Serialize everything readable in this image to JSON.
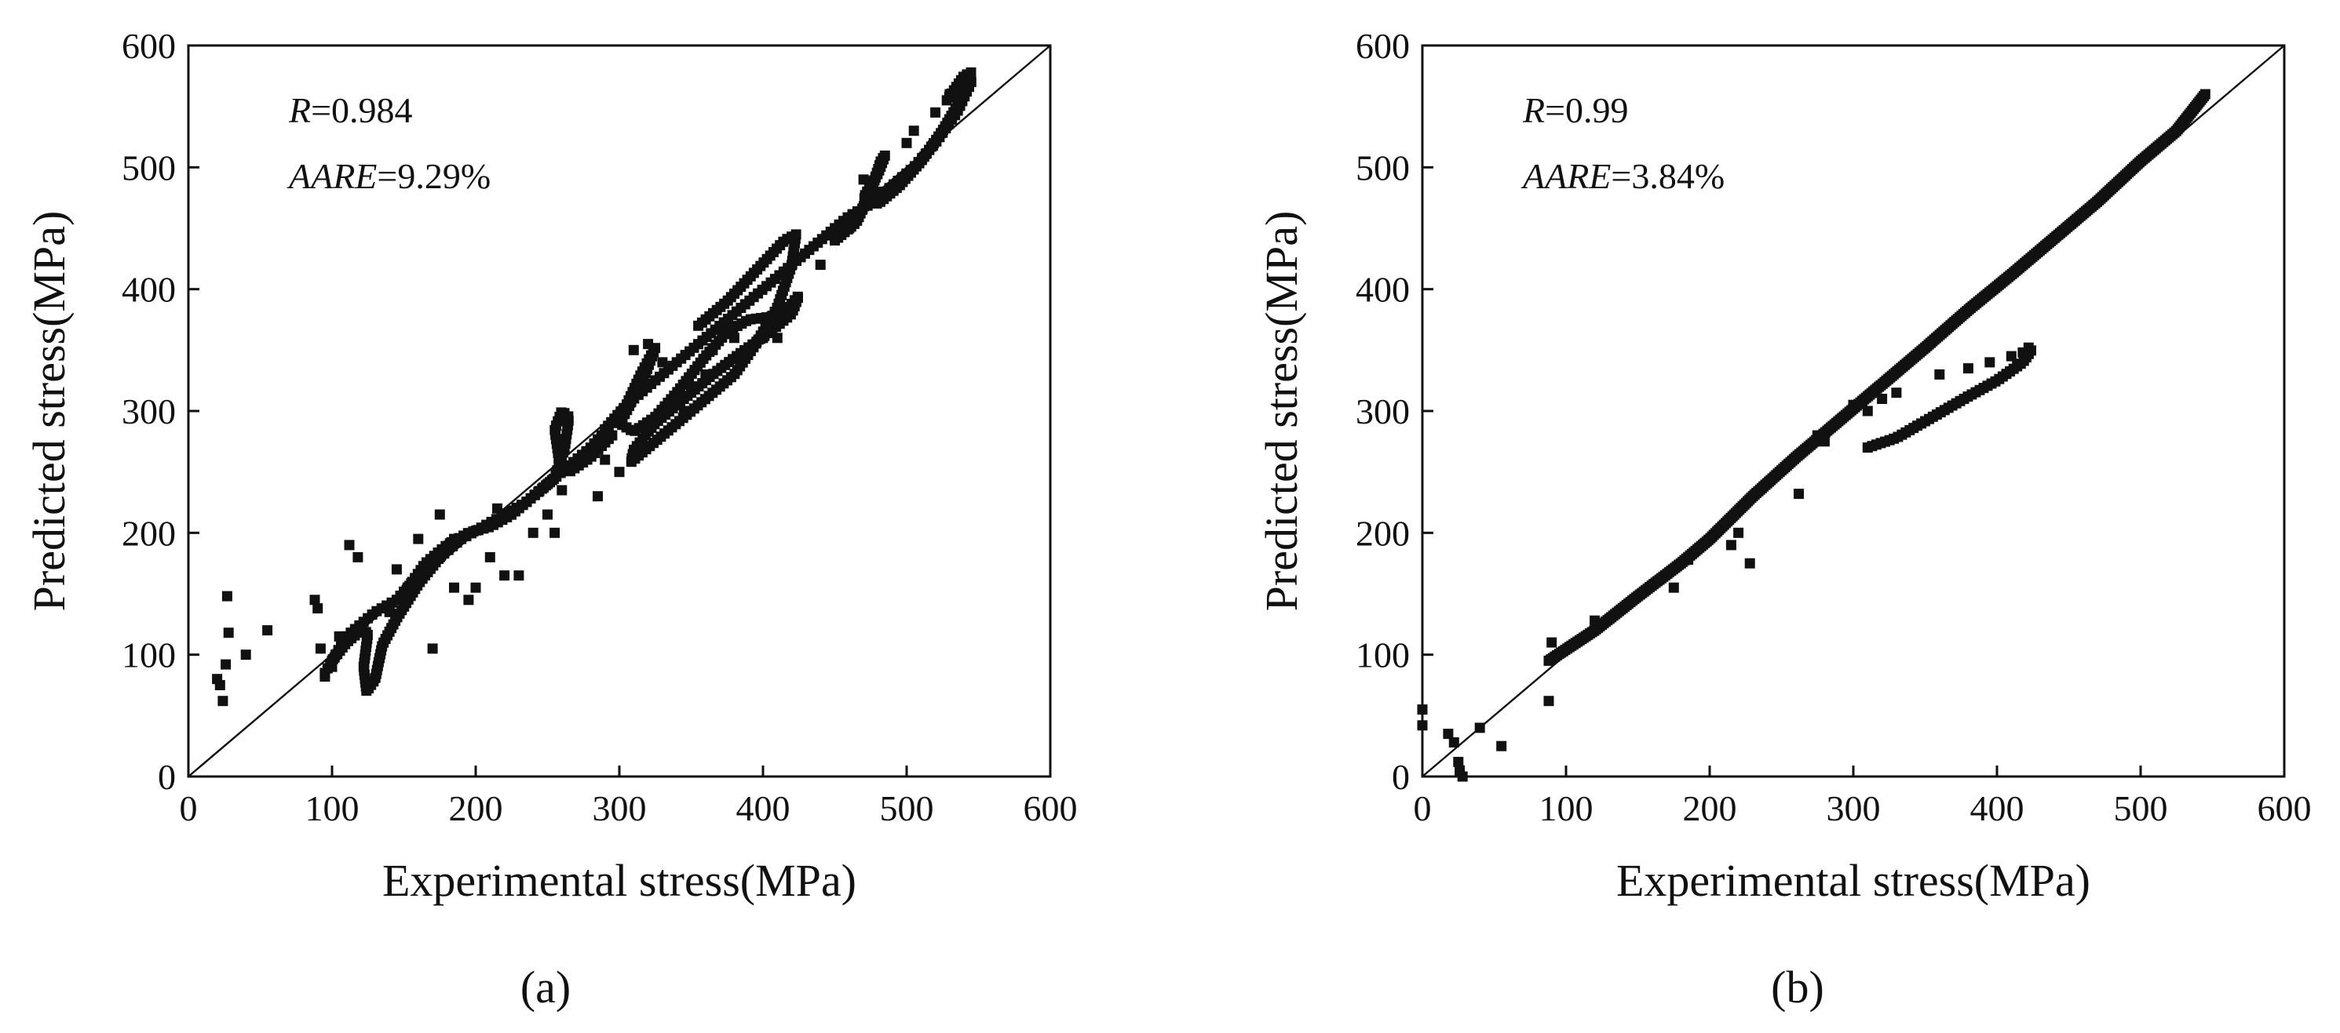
{
  "chart_data": [
    {
      "type": "scatter",
      "panel_label": "(a)",
      "xlabel": "Experimental stress(MPa)",
      "ylabel": "Predicted stress(MPa)",
      "xlim": [
        0,
        600
      ],
      "ylim": [
        0,
        600
      ],
      "xticks": [
        "0",
        "100",
        "200",
        "300",
        "400",
        "500",
        "600"
      ],
      "yticks": [
        "0",
        "100",
        "200",
        "300",
        "400",
        "500",
        "600"
      ],
      "grid": false,
      "reference_line": [
        [
          0,
          0
        ],
        [
          600,
          600
        ]
      ],
      "stats": {
        "r_label": "R",
        "r_value": "=0.984",
        "aare_label": "AARE",
        "aare_value": "=9.29%"
      },
      "marker_color": "#111111",
      "outliers": [
        [
          20,
          80
        ],
        [
          22,
          75
        ],
        [
          24,
          62
        ],
        [
          26,
          92
        ],
        [
          27,
          148
        ],
        [
          28,
          118
        ],
        [
          40,
          100
        ],
        [
          55,
          120
        ],
        [
          88,
          145
        ],
        [
          90,
          138
        ],
        [
          92,
          105
        ],
        [
          95,
          82
        ],
        [
          100,
          90
        ],
        [
          105,
          115
        ],
        [
          112,
          190
        ],
        [
          118,
          180
        ],
        [
          140,
          135
        ],
        [
          145,
          170
        ],
        [
          155,
          155
        ],
        [
          160,
          195
        ],
        [
          170,
          105
        ],
        [
          175,
          215
        ],
        [
          185,
          155
        ],
        [
          195,
          145
        ],
        [
          200,
          155
        ],
        [
          210,
          180
        ],
        [
          215,
          220
        ],
        [
          220,
          165
        ],
        [
          230,
          165
        ],
        [
          240,
          200
        ],
        [
          250,
          215
        ],
        [
          255,
          200
        ],
        [
          260,
          235
        ],
        [
          285,
          230
        ],
        [
          290,
          260
        ],
        [
          300,
          250
        ],
        [
          345,
          300
        ],
        [
          350,
          320
        ],
        [
          360,
          330
        ],
        [
          365,
          350
        ],
        [
          380,
          360
        ],
        [
          400,
          360
        ],
        [
          410,
          360
        ],
        [
          440,
          420
        ],
        [
          450,
          440
        ],
        [
          460,
          450
        ],
        [
          470,
          490
        ],
        [
          480,
          480
        ],
        [
          500,
          520
        ],
        [
          505,
          530
        ],
        [
          520,
          545
        ],
        [
          530,
          560
        ],
        [
          310,
          350
        ],
        [
          320,
          355
        ],
        [
          330,
          340
        ]
      ],
      "segments": [
        {
          "points": [
            [
              95,
              85
            ],
            [
              100,
              95
            ],
            [
              110,
              115
            ],
            [
              120,
              125
            ],
            [
              130,
              135
            ],
            [
              145,
              145
            ],
            [
              160,
              165
            ],
            [
              175,
              180
            ],
            [
              190,
              195
            ],
            [
              205,
              205
            ],
            [
              220,
              215
            ],
            [
              235,
              225
            ],
            [
              250,
              240
            ],
            [
              265,
              255
            ],
            [
              280,
              270
            ],
            [
              295,
              290
            ],
            [
              310,
              310
            ],
            [
              325,
              325
            ],
            [
              340,
              340
            ],
            [
              355,
              355
            ],
            [
              370,
              370
            ],
            [
              385,
              385
            ],
            [
              400,
              400
            ],
            [
              415,
              415
            ],
            [
              430,
              430
            ],
            [
              445,
              445
            ],
            [
              460,
              460
            ],
            [
              475,
              470
            ],
            [
              490,
              485
            ],
            [
              505,
              500
            ],
            [
              520,
              520
            ],
            [
              535,
              545
            ],
            [
              545,
              570
            ]
          ],
          "n": 160
        },
        {
          "points": [
            [
              100,
              95
            ],
            [
              110,
              110
            ],
            [
              120,
              120
            ],
            [
              125,
              118
            ],
            [
              122,
              90
            ],
            [
              124,
              70
            ],
            [
              130,
              80
            ],
            [
              135,
              108
            ],
            [
              145,
              130
            ],
            [
              160,
              158
            ],
            [
              175,
              180
            ],
            [
              185,
              195
            ]
          ],
          "n": 70
        },
        {
          "points": [
            [
              150,
              150
            ],
            [
              165,
              175
            ],
            [
              180,
              190
            ],
            [
              195,
              200
            ],
            [
              210,
              205
            ],
            [
              225,
              215
            ],
            [
              240,
              230
            ],
            [
              255,
              245
            ],
            [
              262,
              270
            ],
            [
              265,
              295
            ],
            [
              260,
              300
            ],
            [
              255,
              285
            ],
            [
              258,
              260
            ],
            [
              265,
              250
            ],
            [
              280,
              262
            ],
            [
              295,
              280
            ]
          ],
          "n": 80
        },
        {
          "points": [
            [
              290,
              285
            ],
            [
              305,
              305
            ],
            [
              315,
              330
            ],
            [
              325,
              352
            ],
            [
              318,
              330
            ],
            [
              305,
              300
            ],
            [
              300,
              290
            ],
            [
              310,
              283
            ],
            [
              325,
              295
            ],
            [
              340,
              315
            ],
            [
              360,
              345
            ],
            [
              375,
              365
            ],
            [
              390,
              375
            ],
            [
              410,
              378
            ],
            [
              420,
              388
            ],
            [
              425,
              395
            ],
            [
              420,
              380
            ],
            [
              405,
              365
            ],
            [
              385,
              348
            ],
            [
              365,
              330
            ],
            [
              345,
              310
            ],
            [
              325,
              290
            ],
            [
              310,
              268
            ],
            [
              308,
              258
            ],
            [
              320,
              270
            ],
            [
              340,
              290
            ],
            [
              360,
              310
            ],
            [
              380,
              330
            ],
            [
              395,
              355
            ],
            [
              410,
              385
            ],
            [
              420,
              420
            ],
            [
              423,
              445
            ],
            [
              415,
              440
            ],
            [
              395,
              415
            ],
            [
              375,
              390
            ],
            [
              355,
              370
            ]
          ],
          "n": 230
        },
        {
          "points": [
            [
              450,
              440
            ],
            [
              465,
              455
            ],
            [
              475,
              480
            ],
            [
              482,
              505
            ],
            [
              485,
              510
            ],
            [
              480,
              495
            ],
            [
              470,
              475
            ],
            [
              480,
              470
            ],
            [
              495,
              485
            ],
            [
              510,
              505
            ],
            [
              525,
              530
            ],
            [
              535,
              550
            ],
            [
              543,
              572
            ],
            [
              545,
              578
            ],
            [
              540,
              575
            ],
            [
              528,
              555
            ]
          ],
          "n": 90
        }
      ]
    },
    {
      "type": "scatter",
      "panel_label": "(b)",
      "xlabel": "Experimental stress(MPa)",
      "ylabel": "Predicted stress(MPa)",
      "xlim": [
        0,
        600
      ],
      "ylim": [
        0,
        600
      ],
      "xticks": [
        "0",
        "100",
        "200",
        "300",
        "400",
        "500",
        "600"
      ],
      "yticks": [
        "0",
        "100",
        "200",
        "300",
        "400",
        "500",
        "600"
      ],
      "grid": false,
      "reference_line": [
        [
          0,
          0
        ],
        [
          600,
          600
        ]
      ],
      "stats": {
        "r_label": "R",
        "r_value": "=0.99",
        "aare_label": "AARE",
        "aare_value": "=3.84%"
      },
      "marker_color": "#111111",
      "outliers": [
        [
          0,
          55
        ],
        [
          0,
          42
        ],
        [
          18,
          35
        ],
        [
          22,
          28
        ],
        [
          25,
          12
        ],
        [
          26,
          5
        ],
        [
          28,
          0
        ],
        [
          40,
          40
        ],
        [
          55,
          25
        ],
        [
          88,
          62
        ],
        [
          90,
          110
        ],
        [
          120,
          128
        ],
        [
          175,
          155
        ],
        [
          185,
          178
        ],
        [
          215,
          190
        ],
        [
          220,
          200
        ],
        [
          228,
          175
        ],
        [
          262,
          232
        ],
        [
          275,
          280
        ],
        [
          280,
          275
        ],
        [
          300,
          305
        ],
        [
          310,
          300
        ],
        [
          320,
          310
        ],
        [
          330,
          315
        ],
        [
          360,
          330
        ],
        [
          380,
          335
        ],
        [
          395,
          340
        ],
        [
          410,
          345
        ],
        [
          418,
          348
        ]
      ],
      "segments": [
        {
          "points": [
            [
              88,
              95
            ],
            [
              120,
              120
            ],
            [
              150,
              148
            ],
            [
              180,
              175
            ],
            [
              200,
              195
            ],
            [
              230,
              230
            ],
            [
              260,
              262
            ],
            [
              290,
              292
            ],
            [
              320,
              322
            ],
            [
              350,
              352
            ],
            [
              380,
              383
            ],
            [
              410,
              412
            ],
            [
              440,
              442
            ],
            [
              470,
              472
            ],
            [
              500,
              505
            ],
            [
              525,
              530
            ],
            [
              545,
              560
            ]
          ],
          "n": 360
        },
        {
          "points": [
            [
              310,
              270
            ],
            [
              330,
              278
            ],
            [
              355,
              295
            ],
            [
              380,
              312
            ],
            [
              400,
              325
            ],
            [
              418,
              340
            ],
            [
              424,
              350
            ],
            [
              422,
              352
            ]
          ],
          "n": 45
        }
      ]
    }
  ]
}
